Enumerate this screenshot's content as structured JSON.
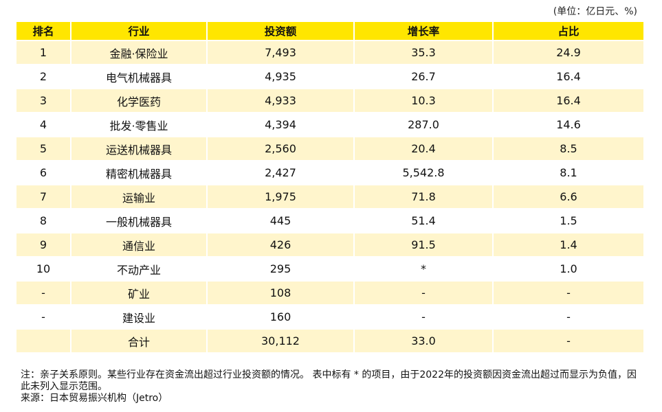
{
  "unit_label": "(单位：亿日元、%)",
  "table": {
    "headers": [
      "排名",
      "行业",
      "投资额",
      "增长率",
      "占比"
    ],
    "rows": [
      [
        "1",
        "金融·保险业",
        "7,493",
        "35.3",
        "24.9"
      ],
      [
        "2",
        "电气机械器具",
        "4,935",
        "26.7",
        "16.4"
      ],
      [
        "3",
        "化学医药",
        "4,933",
        "10.3",
        "16.4"
      ],
      [
        "4",
        "批发·零售业",
        "4,394",
        "287.0",
        "14.6"
      ],
      [
        "5",
        "运送机械器具",
        "2,560",
        "20.4",
        "8.5"
      ],
      [
        "6",
        "精密机械器具",
        "2,427",
        "5,542.8",
        "8.1"
      ],
      [
        "7",
        "运输业",
        "1,975",
        "71.8",
        "6.6"
      ],
      [
        "8",
        "一般机械器具",
        "445",
        "51.4",
        "1.5"
      ],
      [
        "9",
        "通信业",
        "426",
        "91.5",
        "1.4"
      ],
      [
        "10",
        "不动产业",
        "295",
        "*",
        "1.0"
      ],
      [
        "-",
        "矿业",
        "108",
        "-",
        "-"
      ],
      [
        "-",
        "建设业",
        "160",
        "-",
        "-"
      ],
      [
        "",
        "合计",
        "30,112",
        "33.0",
        "-"
      ]
    ]
  },
  "notes": {
    "note": "注：亲子关系原则。某些行业存在资金流出超过行业投资额的情况。 表中标有 * 的项目，由于2022年的投资额因资金流出超过而显示为负值，因此未列入显示范围。",
    "source": "来源：日本贸易振兴机构（Jetro）"
  },
  "colors": {
    "header_bg": "#FFE600",
    "row_band": "#FFF5CC",
    "row_plain": "#FFFFFF"
  }
}
